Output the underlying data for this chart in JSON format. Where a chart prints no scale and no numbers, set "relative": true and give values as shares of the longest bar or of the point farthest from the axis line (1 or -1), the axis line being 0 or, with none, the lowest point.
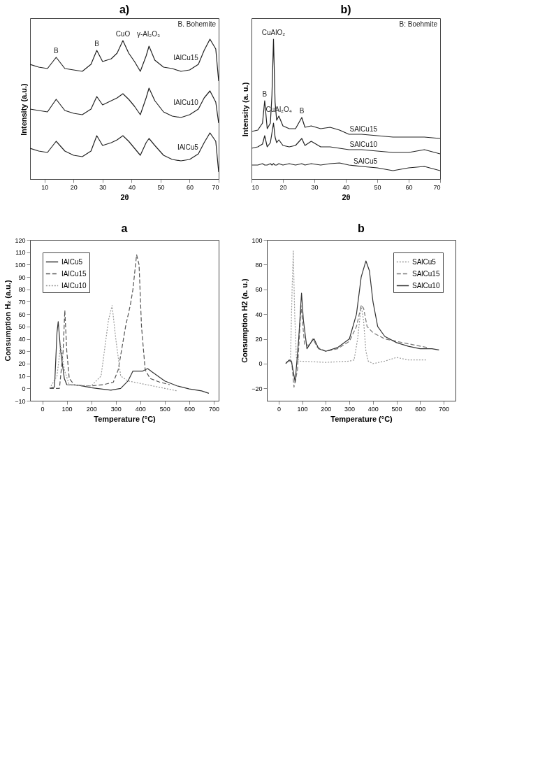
{
  "chart_data": [
    {
      "type": "line",
      "title": "a)",
      "xlabel": "2θ",
      "ylabel": "Intensity (a.u.)",
      "relative": true,
      "legend": false,
      "xlim": [
        5,
        70
      ],
      "xticks": [
        10,
        20,
        30,
        40,
        50,
        60,
        70
      ],
      "x": [
        5,
        8,
        11,
        14,
        17,
        20,
        23,
        26,
        28,
        30,
        33,
        35,
        37,
        39,
        41,
        43,
        45,
        46,
        48,
        51,
        54,
        57,
        60,
        63,
        65,
        67,
        69,
        70
      ],
      "series": [
        {
          "name": "IAlCu15",
          "color": "#222222",
          "line_style": "solid",
          "values": [
            0.82,
            0.8,
            0.79,
            0.87,
            0.79,
            0.78,
            0.77,
            0.82,
            0.92,
            0.84,
            0.86,
            0.9,
            0.99,
            0.9,
            0.84,
            0.77,
            0.88,
            0.95,
            0.85,
            0.8,
            0.79,
            0.77,
            0.78,
            0.82,
            0.92,
            1.0,
            0.93,
            0.7
          ]
        },
        {
          "name": "IAlCu10",
          "color": "#222222",
          "line_style": "solid",
          "values": [
            0.5,
            0.49,
            0.48,
            0.57,
            0.49,
            0.47,
            0.46,
            0.5,
            0.59,
            0.53,
            0.56,
            0.58,
            0.61,
            0.57,
            0.52,
            0.46,
            0.58,
            0.65,
            0.56,
            0.48,
            0.45,
            0.44,
            0.46,
            0.5,
            0.58,
            0.63,
            0.55,
            0.4
          ]
        },
        {
          "name": "IAlCu5",
          "color": "#222222",
          "line_style": "solid",
          "values": [
            0.22,
            0.2,
            0.19,
            0.27,
            0.2,
            0.17,
            0.16,
            0.2,
            0.31,
            0.24,
            0.26,
            0.28,
            0.31,
            0.27,
            0.22,
            0.17,
            0.26,
            0.29,
            0.24,
            0.17,
            0.14,
            0.13,
            0.14,
            0.18,
            0.26,
            0.33,
            0.27,
            0.05
          ]
        }
      ],
      "annotations": [
        "B. Bohemite",
        "γ-Al₂O₃",
        {
          "text": "B",
          "x": 14,
          "y": 0.87
        },
        {
          "text": "B",
          "x": 28,
          "y": 0.92
        },
        {
          "text": "CuO",
          "x": 37,
          "y": 0.99
        }
      ]
    },
    {
      "type": "line",
      "title": "b)",
      "xlabel": "2θ",
      "ylabel": "Intensity (a. u.)",
      "relative": true,
      "legend": false,
      "xlim": [
        10,
        70
      ],
      "xticks": [
        10,
        20,
        30,
        40,
        50,
        60,
        70
      ],
      "x": [
        10,
        12,
        13.5,
        14.2,
        15,
        16,
        16.5,
        17,
        17.5,
        18,
        18.7,
        20,
        22,
        24,
        26,
        27,
        29,
        32,
        35,
        38,
        41,
        45,
        50,
        55,
        60,
        65,
        70
      ],
      "series": [
        {
          "name": "SAlCu15",
          "color": "#222222",
          "line_style": "solid",
          "values": [
            0.34,
            0.35,
            0.4,
            0.56,
            0.36,
            0.4,
            0.6,
            1.0,
            0.55,
            0.42,
            0.45,
            0.38,
            0.36,
            0.36,
            0.44,
            0.37,
            0.38,
            0.36,
            0.37,
            0.35,
            0.32,
            0.32,
            0.31,
            0.3,
            0.3,
            0.3,
            0.29
          ]
        },
        {
          "name": "SAlCu10",
          "color": "#222222",
          "line_style": "solid",
          "values": [
            0.22,
            0.23,
            0.25,
            0.31,
            0.23,
            0.26,
            0.33,
            0.4,
            0.3,
            0.26,
            0.28,
            0.24,
            0.23,
            0.24,
            0.29,
            0.24,
            0.27,
            0.23,
            0.23,
            0.22,
            0.21,
            0.21,
            0.2,
            0.19,
            0.19,
            0.21,
            0.18
          ]
        },
        {
          "name": "SAlCu5",
          "color": "#222222",
          "line_style": "solid",
          "values": [
            0.1,
            0.1,
            0.11,
            0.1,
            0.1,
            0.11,
            0.1,
            0.11,
            0.1,
            0.1,
            0.11,
            0.1,
            0.11,
            0.1,
            0.11,
            0.1,
            0.11,
            0.1,
            0.11,
            0.115,
            0.1,
            0.09,
            0.08,
            0.06,
            0.08,
            0.09,
            0.06
          ]
        }
      ],
      "annotations": [
        "B: Boehmite",
        {
          "text": "CuAlO₂",
          "x": 17,
          "y": 1.0
        },
        {
          "text": "CuAl₂O₄",
          "x": 18.7,
          "y": 0.45
        },
        {
          "text": "B",
          "x": 14.2,
          "y": 0.56
        },
        {
          "text": "B",
          "x": 26,
          "y": 0.44
        }
      ]
    },
    {
      "type": "line",
      "title": "a",
      "xlabel": "Temperature (°C)",
      "ylabel": "Consumption H₂ (a.u.)",
      "legend": "top left",
      "xlim": [
        -50,
        720
      ],
      "xticks": [
        0,
        100,
        200,
        300,
        400,
        500,
        600,
        700
      ],
      "ylim": [
        -10,
        120
      ],
      "yticks": [
        -10,
        0,
        10,
        20,
        30,
        40,
        50,
        60,
        70,
        80,
        90,
        100,
        110,
        120
      ],
      "series": [
        {
          "name": "IAlCu5",
          "color": "#333333",
          "line_style": "solid",
          "x": [
            30,
            50,
            60,
            65,
            75,
            90,
            100,
            150,
            200,
            280,
            320,
            350,
            370,
            390,
            410,
            430,
            450,
            500,
            550,
            600,
            650,
            680
          ],
          "values": [
            0,
            1,
            45,
            54,
            30,
            8,
            3,
            2.5,
            0.5,
            -1.5,
            0,
            6,
            14,
            14,
            14,
            16,
            13,
            6,
            2,
            -0.5,
            -2,
            -4
          ]
        },
        {
          "name": "IAlCu15",
          "color": "#555555",
          "line_style": "dashed",
          "x": [
            30,
            70,
            85,
            92,
            100,
            110,
            130,
            160,
            200,
            250,
            290,
            310,
            340,
            360,
            370,
            385,
            395,
            405,
            420,
            440,
            480,
            520
          ],
          "values": [
            0,
            0,
            30,
            63,
            30,
            8,
            3,
            2,
            2,
            3,
            5,
            15,
            50,
            68,
            80,
            108,
            100,
            50,
            15,
            8,
            5,
            3
          ]
        },
        {
          "name": "IAlCu10",
          "color": "#999999",
          "line_style": "dotted",
          "x": [
            30,
            60,
            75,
            90,
            110,
            200,
            240,
            270,
            285,
            300,
            320,
            350,
            400,
            450,
            500,
            550
          ],
          "values": [
            0,
            10,
            35,
            15,
            3,
            2,
            10,
            55,
            67,
            40,
            10,
            6,
            4,
            2,
            0,
            -2
          ]
        }
      ]
    },
    {
      "type": "line",
      "title": "b",
      "xlabel": "Temperature (°C)",
      "ylabel": "Consumption H2 (a. u.)",
      "legend": "top right",
      "xlim": [
        -50,
        750
      ],
      "xticks": [
        0,
        100,
        200,
        300,
        400,
        500,
        600,
        700
      ],
      "ylim": [
        -30,
        100
      ],
      "yticks": [
        -20,
        0,
        20,
        40,
        60,
        80,
        100
      ],
      "series": [
        {
          "name": "SAlCu5",
          "color": "#999999",
          "line_style": "dotted",
          "x": [
            30,
            50,
            57,
            62,
            68,
            75,
            90,
            200,
            300,
            320,
            335,
            350,
            360,
            370,
            380,
            400,
            450,
            500,
            550,
            630
          ],
          "values": [
            1,
            2,
            60,
            91,
            40,
            5,
            2,
            1,
            2,
            3,
            20,
            47,
            35,
            10,
            2,
            0,
            2,
            5,
            3,
            3
          ]
        },
        {
          "name": "SAlCu15",
          "color": "#777777",
          "line_style": "dashed",
          "x": [
            30,
            45,
            55,
            65,
            80,
            95,
            110,
            130,
            145,
            165,
            200,
            250,
            300,
            330,
            350,
            360,
            375,
            400,
            450,
            500,
            550,
            630
          ],
          "values": [
            0,
            3,
            2,
            -19,
            -5,
            47,
            15,
            15,
            20,
            13,
            10,
            12,
            18,
            30,
            47,
            45,
            30,
            25,
            20,
            18,
            16,
            13
          ]
        },
        {
          "name": "SAlCu10",
          "color": "#333333",
          "line_style": "solid",
          "x": [
            30,
            45,
            55,
            70,
            85,
            97,
            105,
            120,
            140,
            150,
            170,
            200,
            250,
            300,
            330,
            350,
            370,
            385,
            400,
            420,
            450,
            500,
            550,
            600,
            650,
            680
          ],
          "values": [
            0,
            3,
            1,
            -15,
            20,
            57,
            35,
            12,
            18,
            20,
            12,
            10,
            13,
            20,
            40,
            70,
            83,
            75,
            50,
            30,
            22,
            17,
            14,
            12,
            12,
            11
          ]
        }
      ]
    }
  ]
}
